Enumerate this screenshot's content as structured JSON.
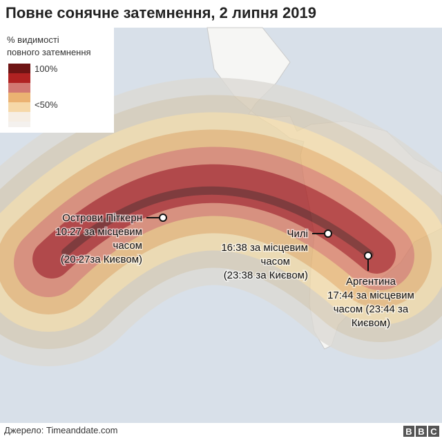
{
  "title": "Повне сонячне затемнення, 2 липня 2019",
  "legend": {
    "title": [
      "% видимості",
      "повного затемнення"
    ],
    "labels": [
      "100%",
      "<50%"
    ]
  },
  "annotations": [
    {
      "lines": [
        "Острови Піткерн",
        "10:27 за місцевим",
        "часом",
        "(20:27за Києвом)"
      ]
    },
    {
      "lines": [
        "Чилі",
        "16:38 за місцевим",
        "часом",
        "(23:38 за Києвом)"
      ]
    },
    {
      "lines": [
        "Аргентина",
        "17:44 за місцевим",
        "часом (23:44 за",
        "Києвом)"
      ]
    }
  ],
  "source": "Джерело: Timeanddate.com",
  "logo": [
    "B",
    "B",
    "C"
  ]
}
